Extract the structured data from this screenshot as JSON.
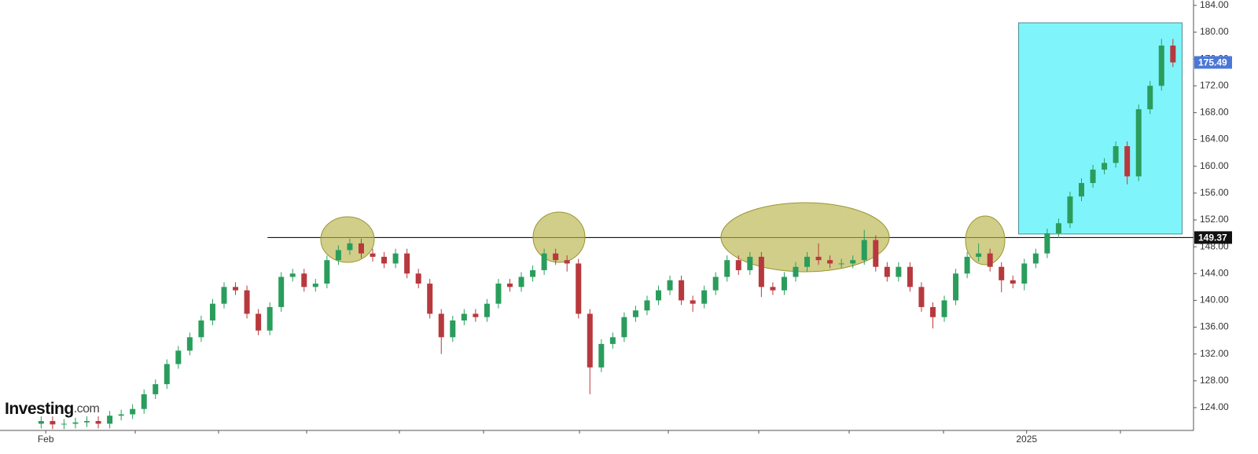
{
  "chart_data": {
    "type": "candlestick",
    "logo": {
      "name": "Investing",
      "suffix": ".com"
    },
    "open": [
      121.6,
      122,
      121.5,
      121.6,
      121.8,
      122,
      121.6,
      122.8,
      123,
      123.8,
      126,
      127.5,
      130.5,
      132.5,
      134.5,
      137,
      139.5,
      142,
      141.5,
      138,
      135.5,
      139,
      143.5,
      144,
      142,
      142.5,
      146,
      147.5,
      148.5,
      147,
      146.5,
      145.5,
      147,
      144,
      142.5,
      138,
      134.5,
      137,
      138,
      137.5,
      139.5,
      142.5,
      142,
      143.5,
      144.5,
      147,
      146,
      145.5,
      138,
      130,
      133.5,
      134.5,
      137.5,
      138.5,
      140,
      141.5,
      143,
      140,
      139.5,
      141.5,
      143.5,
      146,
      144.5,
      146.5,
      142,
      141.5,
      143.5,
      145,
      146.5,
      146,
      145.5,
      145.5,
      146,
      149,
      145,
      143.5,
      145,
      142,
      139,
      137.5,
      140,
      144,
      146.5,
      147,
      145,
      143,
      142.5,
      145.5,
      147,
      150,
      151.5,
      155.5,
      157.5,
      159.5,
      160.5,
      163,
      158.5,
      168.5,
      172,
      178
    ],
    "high": [
      122.7,
      122.7,
      122.3,
      122.5,
      122.7,
      122.7,
      123.5,
      123.7,
      124.5,
      126.7,
      128.2,
      131.2,
      133.2,
      135.2,
      137.7,
      140.2,
      142.7,
      142.7,
      142.2,
      138.7,
      139.7,
      144.2,
      144.7,
      144.7,
      143.2,
      146.7,
      148.2,
      149.2,
      149.2,
      147.7,
      147.2,
      147.7,
      147.7,
      144.7,
      143.2,
      138.7,
      137.7,
      138.7,
      138.7,
      140.2,
      143.2,
      143.2,
      144.2,
      145.2,
      147.7,
      147.7,
      146.7,
      146.2,
      138.7,
      134.2,
      135.2,
      138.2,
      139.2,
      140.7,
      142.2,
      143.7,
      143.7,
      140.7,
      142.2,
      144.2,
      146.7,
      146.7,
      147.2,
      147.2,
      142.7,
      144.2,
      145.7,
      147.2,
      148.5,
      146.7,
      146.2,
      146.7,
      150.5,
      149.7,
      145.7,
      145.7,
      145.7,
      142.7,
      139.7,
      140.7,
      144.7,
      147.2,
      148.5,
      147.7,
      145.7,
      143.7,
      146.2,
      147.7,
      150.7,
      152.2,
      156.2,
      158.2,
      160.2,
      161.2,
      163.7,
      163.7,
      169.2,
      172.7,
      179,
      179
    ],
    "low": [
      120.9,
      120.8,
      120.8,
      120.9,
      121.1,
      120.9,
      120.9,
      122.1,
      122.3,
      123.1,
      125.3,
      126.8,
      129.8,
      131.8,
      133.8,
      136.3,
      138.8,
      140.8,
      137.3,
      134.8,
      134.8,
      138.3,
      142.8,
      141.3,
      141.3,
      141.8,
      145.3,
      146.8,
      146.3,
      145.8,
      144.8,
      144.8,
      143.3,
      141.8,
      137.3,
      132,
      133.8,
      136.3,
      136.8,
      136.8,
      138.8,
      141.3,
      141.3,
      142.8,
      143.8,
      145.3,
      144.3,
      137.3,
      126,
      129.3,
      132.8,
      133.8,
      136.8,
      137.8,
      139.3,
      140.8,
      139.3,
      138.3,
      138.8,
      140.8,
      142.8,
      143.8,
      143.8,
      140.5,
      140.8,
      140.8,
      142.8,
      144.3,
      145.3,
      144.8,
      144.8,
      144.8,
      145.3,
      144.3,
      142.8,
      142.8,
      141.3,
      138.3,
      135.8,
      136.8,
      139.3,
      143.3,
      145.8,
      144.3,
      141.2,
      141.8,
      141.5,
      144.8,
      146.3,
      149.3,
      150.8,
      154.8,
      156.8,
      158.8,
      159.8,
      157.3,
      157.8,
      167.8,
      171.3,
      174.8
    ],
    "close": [
      122,
      121.5,
      121.6,
      121.8,
      122,
      121.6,
      122.8,
      123,
      123.8,
      126,
      127.5,
      130.5,
      132.5,
      134.5,
      137,
      139.5,
      142,
      141.5,
      138,
      135.5,
      139,
      143.5,
      144,
      142,
      142.5,
      146,
      147.5,
      148.5,
      147,
      146.5,
      145.5,
      147,
      144,
      142.5,
      138,
      134.5,
      137,
      138,
      137.5,
      139.5,
      142.5,
      142,
      143.5,
      144.5,
      147,
      146,
      145.5,
      138,
      130,
      133.5,
      134.5,
      137.5,
      138.5,
      140,
      141.5,
      143,
      140,
      139.5,
      141.5,
      143.5,
      146,
      144.5,
      146.5,
      142,
      141.5,
      143.5,
      145,
      146.5,
      146,
      145.5,
      145.5,
      146,
      149,
      145,
      143.5,
      145,
      142,
      139,
      137.5,
      140,
      144,
      146.5,
      147,
      145,
      143,
      142.5,
      145.5,
      147,
      150,
      151.5,
      155.5,
      157.5,
      159.5,
      160.5,
      163,
      158.5,
      168.5,
      172,
      178,
      175.49
    ],
    "up_color": "#2a9d5c",
    "down_color": "#b7393d",
    "xlim": [
      -3.6,
      100.8
    ],
    "xticks": [
      {
        "value": 0.4,
        "label": "Feb"
      },
      {
        "value": 86.2,
        "label": "2025"
      }
    ],
    "ylim": [
      120.6,
      184.8
    ],
    "yticks": [
      {
        "value": 124,
        "label": "124.00"
      },
      {
        "value": 128,
        "label": "128.00"
      },
      {
        "value": 132,
        "label": "132.00"
      },
      {
        "value": 136,
        "label": "136.00"
      },
      {
        "value": 140,
        "label": "140.00"
      },
      {
        "value": 144,
        "label": "144.00"
      },
      {
        "value": 148,
        "label": "148.00"
      },
      {
        "value": 152,
        "label": "152.00"
      },
      {
        "value": 156,
        "label": "156.00"
      },
      {
        "value": 160,
        "label": "160.00"
      },
      {
        "value": 164,
        "label": "164.00"
      },
      {
        "value": 168,
        "label": "168.00"
      },
      {
        "value": 172,
        "label": "172.00"
      },
      {
        "value": 176,
        "label": "176.00"
      },
      {
        "value": 180,
        "label": "180.00"
      },
      {
        "value": 184,
        "label": "184.00"
      }
    ],
    "resistance": {
      "value": 149.37,
      "start": 19.8
    },
    "last_price": {
      "value": 175.49,
      "color": "#4a78d8"
    },
    "highlight_box": {
      "x": [
        85.5,
        99.8
      ],
      "y": [
        149.9,
        181.4
      ],
      "color": "#80f4fb"
    }
  }
}
